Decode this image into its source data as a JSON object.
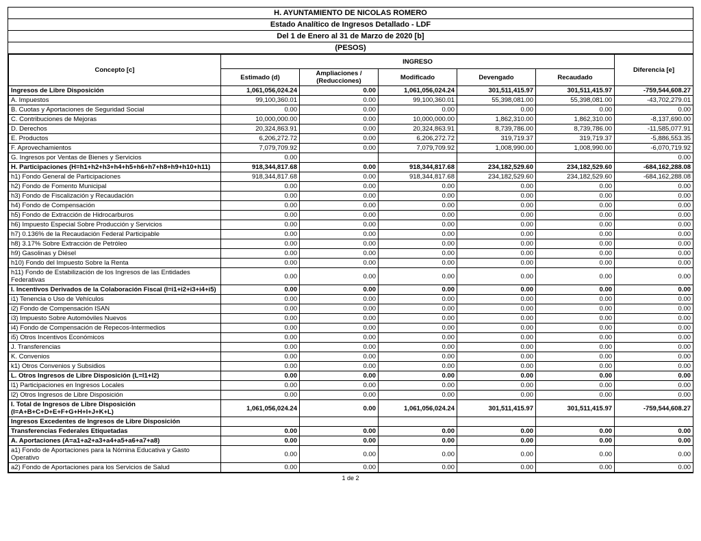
{
  "header": {
    "line1": "H. AYUNTAMIENTO DE NICOLAS ROMERO",
    "line2": "Estado Analítico de Ingresos Detallado - LDF",
    "line3": "Del 1 de Enero al 31 de Marzo de 2020 [b]",
    "line4": "(PESOS)"
  },
  "columns": {
    "concepto": "Concepto [c]",
    "ingreso": "INGRESO",
    "estimado": "Estimado (d)",
    "ampl": "Ampliaciones / (Reducciones)",
    "modificado": "Modificado",
    "devengado": "Devengado",
    "recaudado": "Recaudado",
    "diferencia": "Diferencia [e]"
  },
  "rows": [
    {
      "bold": true,
      "c": "Ingresos de Libre Disposición",
      "v": [
        "1,061,056,024.24",
        "0.00",
        "1,061,056,024.24",
        "301,511,415.97",
        "301,511,415.97",
        "-759,544,608.27"
      ]
    },
    {
      "c": "A. Impuestos",
      "v": [
        "99,100,360.01",
        "0.00",
        "99,100,360.01",
        "55,398,081.00",
        "55,398,081.00",
        "-43,702,279.01"
      ]
    },
    {
      "c": "B. Cuotas y Aportaciones de Seguridad Social",
      "v": [
        "0.00",
        "0.00",
        "0.00",
        "0.00",
        "0.00",
        "0.00"
      ]
    },
    {
      "c": "C. Contribuciones de Mejoras",
      "v": [
        "10,000,000.00",
        "0.00",
        "10,000,000.00",
        "1,862,310.00",
        "1,862,310.00",
        "-8,137,690.00"
      ]
    },
    {
      "c": "D. Derechos",
      "v": [
        "20,324,863.91",
        "0.00",
        "20,324,863.91",
        "8,739,786.00",
        "8,739,786.00",
        "-11,585,077.91"
      ]
    },
    {
      "c": "E. Productos",
      "v": [
        "6,206,272.72",
        "0.00",
        "6,206,272.72",
        "319,719.37",
        "319,719.37",
        "-5,886,553.35"
      ]
    },
    {
      "c": "F. Aprovechamientos",
      "v": [
        "7,079,709.92",
        "0.00",
        "7,079,709.92",
        "1,008,990.00",
        "1,008,990.00",
        "-6,070,719.92"
      ]
    },
    {
      "c": "G. Ingresos por Ventas de Bienes y Servicios",
      "v": [
        "0.00",
        "",
        "",
        "",
        "",
        "0.00"
      ]
    },
    {
      "bold": true,
      "c": "H. Participaciones (H=h1+h2+h3+h4+h5+h6+h7+h8+h9+h10+h11)",
      "v": [
        "918,344,817.68",
        "0.00",
        "918,344,817.68",
        "234,182,529.60",
        "234,182,529.60",
        "-684,162,288.08"
      ]
    },
    {
      "c": "h1) Fondo General de Participaciones",
      "v": [
        "918,344,817.68",
        "0.00",
        "918,344,817.68",
        "234,182,529.60",
        "234,182,529.60",
        "-684,162,288.08"
      ]
    },
    {
      "c": "h2) Fondo de Fomento Municipal",
      "v": [
        "0.00",
        "0.00",
        "0.00",
        "0.00",
        "0.00",
        "0.00"
      ]
    },
    {
      "c": "h3) Fondo de Fiscalización y Recaudación",
      "v": [
        "0.00",
        "0.00",
        "0.00",
        "0.00",
        "0.00",
        "0.00"
      ]
    },
    {
      "c": "h4) Fondo de Compensación",
      "v": [
        "0.00",
        "0.00",
        "0.00",
        "0.00",
        "0.00",
        "0.00"
      ]
    },
    {
      "c": "h5) Fondo de Extracción de Hidrocarburos",
      "v": [
        "0.00",
        "0.00",
        "0.00",
        "0.00",
        "0.00",
        "0.00"
      ]
    },
    {
      "c": "h6) Impuesto Especial Sobre Producción y Servicios",
      "v": [
        "0.00",
        "0.00",
        "0.00",
        "0.00",
        "0.00",
        "0.00"
      ]
    },
    {
      "c": "h7) 0.136% de la Recaudación Federal Participable",
      "v": [
        "0.00",
        "0.00",
        "0.00",
        "0.00",
        "0.00",
        "0.00"
      ]
    },
    {
      "c": "h8) 3.17% Sobre Extracción de Petróleo",
      "v": [
        "0.00",
        "0.00",
        "0.00",
        "0.00",
        "0.00",
        "0.00"
      ]
    },
    {
      "c": "h9) Gasolinas y Diésel",
      "v": [
        "0.00",
        "0.00",
        "0.00",
        "0.00",
        "0.00",
        "0.00"
      ]
    },
    {
      "c": "h10) Fondo del Impuesto Sobre la Renta",
      "v": [
        "0.00",
        "0.00",
        "0.00",
        "0.00",
        "0.00",
        "0.00"
      ]
    },
    {
      "c": "h11) Fondo de Estabilización de los Ingresos de las Entidades Federativas",
      "v": [
        "0.00",
        "0.00",
        "0.00",
        "0.00",
        "0.00",
        "0.00"
      ]
    },
    {
      "bold": true,
      "c": "I. Incentivos Derivados de la Colaboración Fiscal (I=i1+i2+i3+i4+i5)",
      "v": [
        "0.00",
        "0.00",
        "0.00",
        "0.00",
        "0.00",
        "0.00"
      ]
    },
    {
      "c": "i1) Tenencia o Uso de Vehículos",
      "v": [
        "0.00",
        "0.00",
        "0.00",
        "0.00",
        "0.00",
        "0.00"
      ]
    },
    {
      "c": "i2) Fondo de Compensación ISAN",
      "v": [
        "0.00",
        "0.00",
        "0.00",
        "0.00",
        "0.00",
        "0.00"
      ]
    },
    {
      "c": "i3) Impuesto Sobre Automóviles Nuevos",
      "v": [
        "0.00",
        "0.00",
        "0.00",
        "0.00",
        "0.00",
        "0.00"
      ]
    },
    {
      "c": "i4) Fondo de Compensación de Repecos-Intermedios",
      "v": [
        "0.00",
        "0.00",
        "0.00",
        "0.00",
        "0.00",
        "0.00"
      ]
    },
    {
      "c": "i5) Otros Incentivos Económicos",
      "v": [
        "0.00",
        "0.00",
        "0.00",
        "0.00",
        "0.00",
        "0.00"
      ]
    },
    {
      "c": "J. Transferencias",
      "v": [
        "0.00",
        "0.00",
        "0.00",
        "0.00",
        "0.00",
        "0.00"
      ]
    },
    {
      "c": "K. Convenios",
      "v": [
        "0.00",
        "0.00",
        "0.00",
        "0.00",
        "0.00",
        "0.00"
      ]
    },
    {
      "c": "k1) Otros Convenios y Subsidios",
      "v": [
        "0.00",
        "0.00",
        "0.00",
        "0.00",
        "0.00",
        "0.00"
      ]
    },
    {
      "bold": true,
      "c": "L. Otros Ingresos de Libre Disposición (L=l1+l2)",
      "v": [
        "0.00",
        "0.00",
        "0.00",
        "0.00",
        "0.00",
        "0.00"
      ]
    },
    {
      "c": "l1) Participaciones en Ingresos Locales",
      "v": [
        "0.00",
        "0.00",
        "0.00",
        "0.00",
        "0.00",
        "0.00"
      ]
    },
    {
      "c": "l2) Otros Ingresos de Libre Disposición",
      "v": [
        "0.00",
        "0.00",
        "0.00",
        "0.00",
        "0.00",
        "0.00"
      ]
    },
    {
      "bold": true,
      "c": "I. Total de Ingresos de Libre Disposición (I=A+B+C+D+E+F+G+H+I+J+K+L)",
      "v": [
        "1,061,056,024.24",
        "0.00",
        "1,061,056,024.24",
        "301,511,415.97",
        "301,511,415.97",
        "-759,544,608.27"
      ]
    },
    {
      "bold": true,
      "c": "Ingresos Excedentes de Ingresos de Libre Disposición",
      "v": [
        "",
        "",
        "",
        "",
        "",
        ""
      ]
    },
    {
      "bold": true,
      "c": "Transferencias Federales Etiquetadas",
      "v": [
        "0.00",
        "0.00",
        "0.00",
        "0.00",
        "0.00",
        "0.00"
      ]
    },
    {
      "bold": true,
      "c": "A. Aportaciones (A=a1+a2+a3+a4+a5+a6+a7+a8)",
      "v": [
        "0.00",
        "0.00",
        "0.00",
        "0.00",
        "0.00",
        "0.00"
      ]
    },
    {
      "c": "a1) Fondo de Aportaciones para la Nómina Educativa y Gasto Operativo",
      "v": [
        "0.00",
        "0.00",
        "0.00",
        "0.00",
        "0.00",
        "0.00"
      ]
    },
    {
      "c": "a2) Fondo de Aportaciones para los Servicios de Salud",
      "v": [
        "0.00",
        "0.00",
        "0.00",
        "0.00",
        "0.00",
        "0.00"
      ]
    }
  ],
  "pager": "1 de 2"
}
